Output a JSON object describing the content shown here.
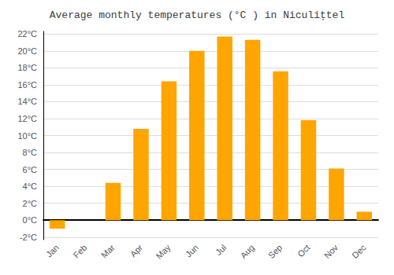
{
  "chart_data": {
    "type": "bar",
    "title": "Average monthly temperatures (°C ) in Niculiţtel",
    "categories": [
      "Jan",
      "Feb",
      "Mar",
      "Apr",
      "May",
      "Jun",
      "Jul",
      "Aug",
      "Sep",
      "Oct",
      "Nov",
      "Dec"
    ],
    "values": [
      -1.0,
      0.0,
      4.4,
      10.8,
      16.4,
      20.0,
      21.7,
      21.3,
      17.6,
      11.8,
      6.1,
      1.0
    ],
    "color": "#FFA500",
    "ylim": [
      -2.3,
      22.3
    ],
    "yticks": [
      {
        "value": -2,
        "label": "-2°C"
      },
      {
        "value": 0,
        "label": "0°C"
      },
      {
        "value": 2,
        "label": "2°C"
      },
      {
        "value": 4,
        "label": "4°C"
      },
      {
        "value": 6,
        "label": "6°C"
      },
      {
        "value": 8,
        "label": "8°C"
      },
      {
        "value": 10,
        "label": "10°C"
      },
      {
        "value": 12,
        "label": "12°C"
      },
      {
        "value": 14,
        "label": "14°C"
      },
      {
        "value": 16,
        "label": "16°C"
      },
      {
        "value": 18,
        "label": "18°C"
      },
      {
        "value": 20,
        "label": "20°C"
      },
      {
        "value": 22,
        "label": "22°C"
      }
    ],
    "grid": true
  }
}
